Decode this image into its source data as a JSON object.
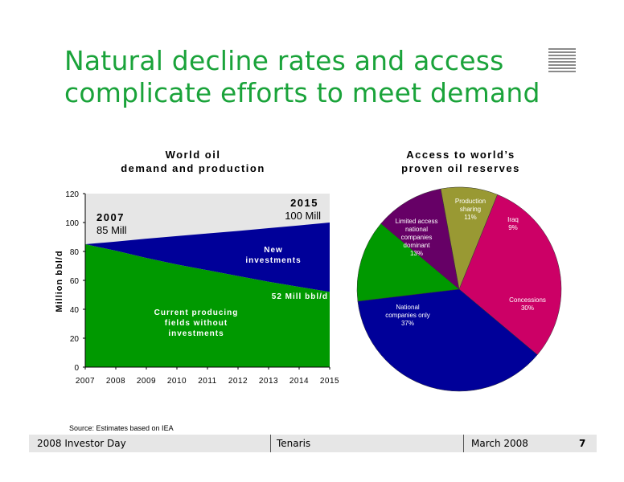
{
  "slide": {
    "title_line1": "Natural decline rates and access",
    "title_line2": "complicate efforts to meet demand",
    "source": "Source:  Estimates based on IEA"
  },
  "footer": {
    "event": "2008 Investor Day",
    "company": "Tenaris",
    "date": "March 2008",
    "page": "7"
  },
  "colors": {
    "title_green": "#1aa33a",
    "area_green": "#009900",
    "area_blue": "#000099",
    "area_gray": "#e6e6e6",
    "pie_magenta": "#cc0066",
    "pie_olive": "#999933",
    "pie_purple": "#660066"
  },
  "chart_data": [
    {
      "type": "area",
      "title_line1": "World oil",
      "title_line2": "demand and production",
      "xlabel": "",
      "ylabel": "Million bbl/d",
      "x": [
        2007,
        2008,
        2009,
        2010,
        2011,
        2012,
        2013,
        2014,
        2015
      ],
      "x_ticks": [
        "2007",
        "2008",
        "2009",
        "2010",
        "2011",
        "2012",
        "2013",
        "2014",
        "2015"
      ],
      "y_ticks": [
        "0",
        "20",
        "40",
        "60",
        "80",
        "100",
        "120"
      ],
      "ylim": [
        0,
        120
      ],
      "series": [
        {
          "name": "Current producing fields without investments",
          "values": [
            85,
            80.5,
            75.5,
            71,
            67,
            63,
            59,
            55.5,
            52
          ]
        },
        {
          "name": "New investments",
          "values": [
            85,
            86.8,
            88.8,
            90.6,
            92.4,
            94.2,
            96.1,
            98,
            100
          ]
        }
      ],
      "labels": {
        "current_line1": "Current producing",
        "current_line2": "fields without",
        "current_line3": "investments",
        "new_line1": "New",
        "new_line2": "investments",
        "end_value": "52 Mill bbl/d",
        "start_year": "2007",
        "start_value": "85 Mill",
        "end_year": "2015",
        "end_total": "100 Mill"
      },
      "grid": false
    },
    {
      "type": "pie",
      "title_line1": "Access to world’s",
      "title_line2": "proven oil reserves",
      "slices": [
        {
          "label": "Concessions",
          "value": 30,
          "pct": "30%"
        },
        {
          "label": "National companies only",
          "value": 37,
          "pct": "37%"
        },
        {
          "label": "Limited access national companies dominant",
          "value": 13,
          "pct": "13%"
        },
        {
          "label": "Production sharing",
          "value": 11,
          "pct": "11%"
        },
        {
          "label": "Iraq",
          "value": 9,
          "pct": "9%"
        }
      ],
      "slice_text": {
        "concessions_1": "Concessions",
        "concessions_2": "30%",
        "national_1": "National",
        "national_2": "companies only",
        "national_3": "37%",
        "limited_1": "Limited access",
        "limited_2": "national",
        "limited_3": "companies",
        "limited_4": "dominant",
        "limited_5": "13%",
        "production_1": "Production",
        "production_2": "sharing",
        "production_3": "11%",
        "iraq_1": "Iraq",
        "iraq_2": "9%"
      }
    }
  ]
}
